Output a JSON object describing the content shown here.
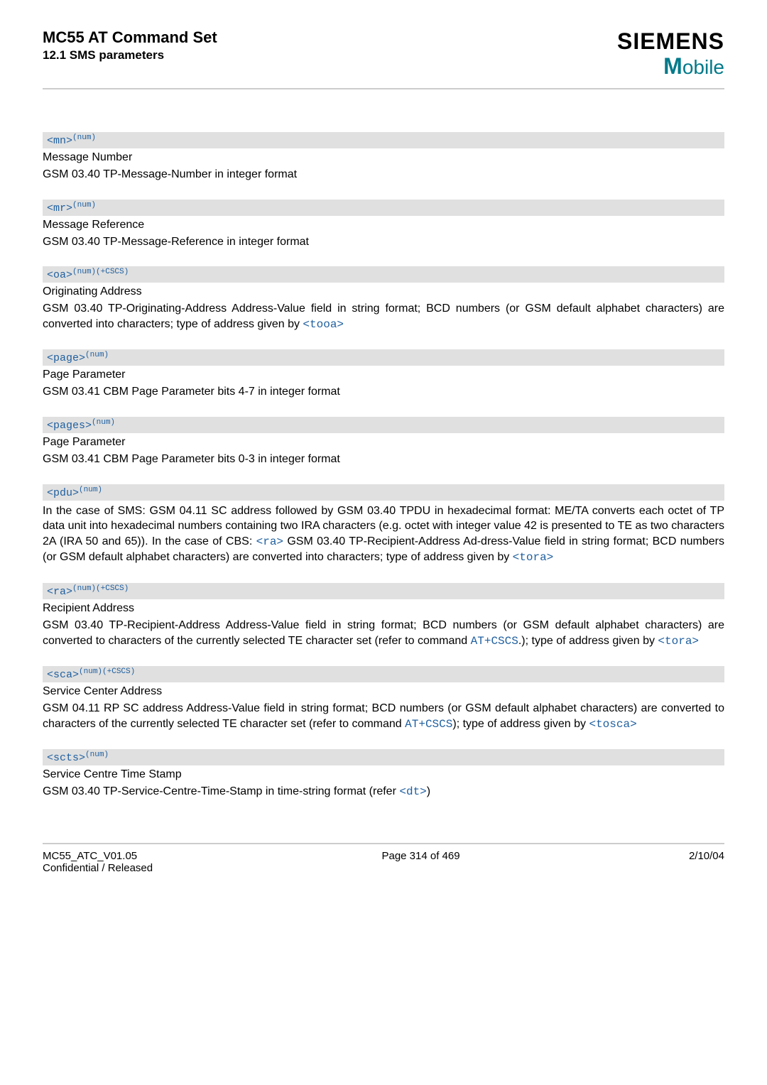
{
  "header": {
    "title": "MC55 AT Command Set",
    "subtitle": "12.1 SMS parameters",
    "brand": "SIEMENS",
    "brand_sub_m": "M",
    "brand_sub_rest": "obile"
  },
  "params": [
    {
      "tag": "<mn>",
      "sup": "(num)",
      "title": "Message Number",
      "desc": "GSM 03.40 TP-Message-Number in integer format"
    },
    {
      "tag": "<mr>",
      "sup": "(num)",
      "title": "Message Reference",
      "desc": "GSM 03.40 TP-Message-Reference in integer format"
    },
    {
      "tag": "<oa>",
      "sup": "(num)(+CSCS)",
      "title": "Originating Address",
      "desc": "GSM 03.40 TP-Originating-Address Address-Value field in string format; BCD numbers (or GSM default alphabet characters) are converted into characters; type of address given by ",
      "link": "<tooa>"
    },
    {
      "tag": "<page>",
      "sup": "(num)",
      "title": "Page Parameter",
      "desc": "GSM 03.41 CBM Page Parameter bits 4-7 in integer format"
    },
    {
      "tag": "<pages>",
      "sup": "(num)",
      "title": "Page Parameter",
      "desc": "GSM 03.41 CBM Page Parameter bits 0-3 in integer format"
    },
    {
      "tag": "<pdu>",
      "sup": "(num)",
      "title": "",
      "desc_parts": [
        "In the case of SMS: GSM 04.11 SC address followed by GSM 03.40 TPDU in hexadecimal format: ME/TA converts each octet of TP data unit into hexadecimal numbers containing two IRA characters (e.g. octet with integer value 42 is presented to TE as two characters 2A (IRA 50 and 65)). In the case of CBS: ",
        "<ra>",
        " GSM 03.40 TP-Recipient-Address Ad-dress-Value field in string format; BCD numbers (or GSM default alphabet characters) are converted into characters; type of address given by ",
        "<tora>"
      ]
    },
    {
      "tag": "<ra>",
      "sup": "(num)(+CSCS)",
      "title": "Recipient Address",
      "desc_parts": [
        "GSM 03.40 TP-Recipient-Address Address-Value field in string format; BCD numbers (or GSM default alphabet characters) are converted to characters of the currently selected TE character set (refer to command ",
        "AT+CSCS",
        ".); type of address given by ",
        "<tora>"
      ]
    },
    {
      "tag": "<sca>",
      "sup": "(num)(+CSCS)",
      "title": "Service Center Address",
      "desc_parts": [
        "GSM 04.11 RP SC address Address-Value field in string format; BCD numbers (or GSM default alphabet characters) are converted to characters of the currently selected TE character set (refer to command ",
        "AT+CSCS",
        "); type of address given by ",
        "<tosca>"
      ]
    },
    {
      "tag": "<scts>",
      "sup": "(num)",
      "title": "Service Centre Time Stamp",
      "desc_parts": [
        "GSM 03.40 TP-Service-Centre-Time-Stamp in time-string format (refer ",
        "<dt>",
        ")"
      ]
    }
  ],
  "footer": {
    "left1": "MC55_ATC_V01.05",
    "left2": "Confidential / Released",
    "center": "Page 314 of 469",
    "right": "2/10/04"
  }
}
